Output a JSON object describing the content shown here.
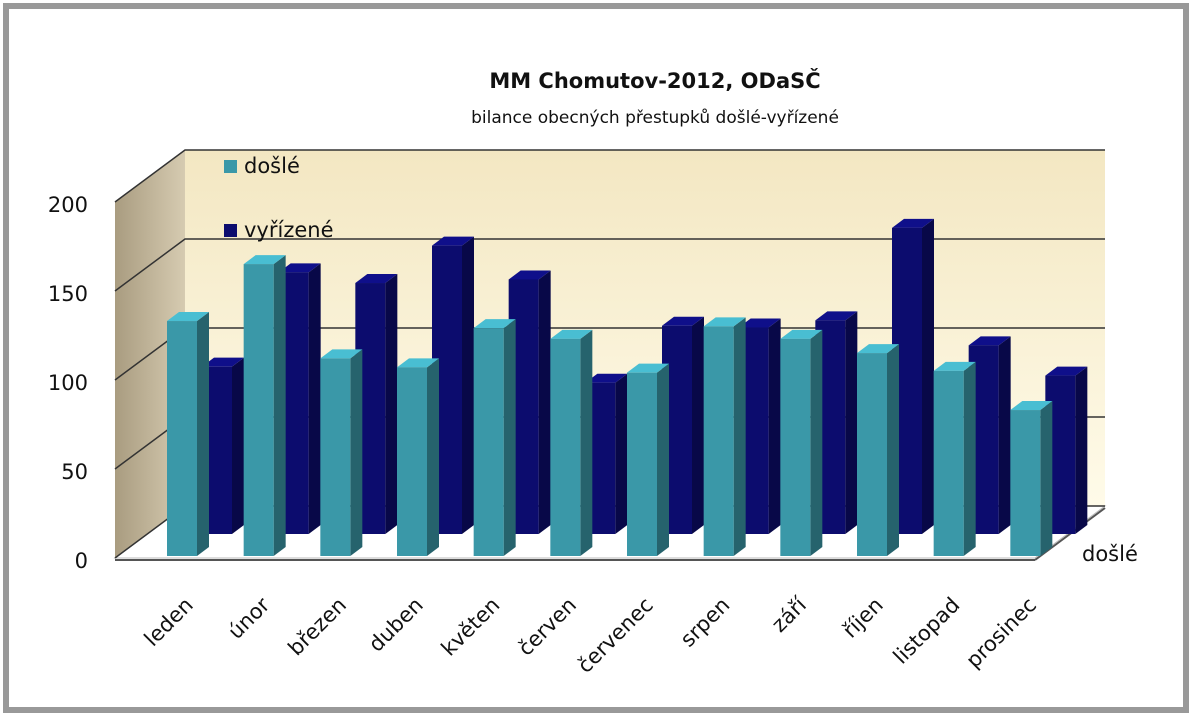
{
  "chart_data": {
    "type": "bar3d",
    "title": "MM Chomutov-2012, ODaSČ",
    "subtitle": "bilance obecných přestupků došlé-vyřízené",
    "categories": [
      "leden",
      "únor",
      "březen",
      "duben",
      "květen",
      "červen",
      "červenec",
      "srpen",
      "září",
      "říjen",
      "listopad",
      "prosinec"
    ],
    "series": [
      {
        "name": "došlé",
        "color": "#3a98a8",
        "values": [
          132,
          164,
          111,
          106,
          128,
          122,
          103,
          129,
          122,
          114,
          104,
          82
        ]
      },
      {
        "name": "vyřízené",
        "color": "#0c0c6e",
        "values": [
          94,
          147,
          141,
          162,
          143,
          85,
          117,
          116,
          120,
          172,
          106,
          89
        ]
      }
    ],
    "depth_label": "došlé",
    "ylim": [
      0,
      200
    ],
    "yticks": [
      0,
      50,
      100,
      150,
      200
    ],
    "grid": true,
    "legend": "top-left"
  }
}
